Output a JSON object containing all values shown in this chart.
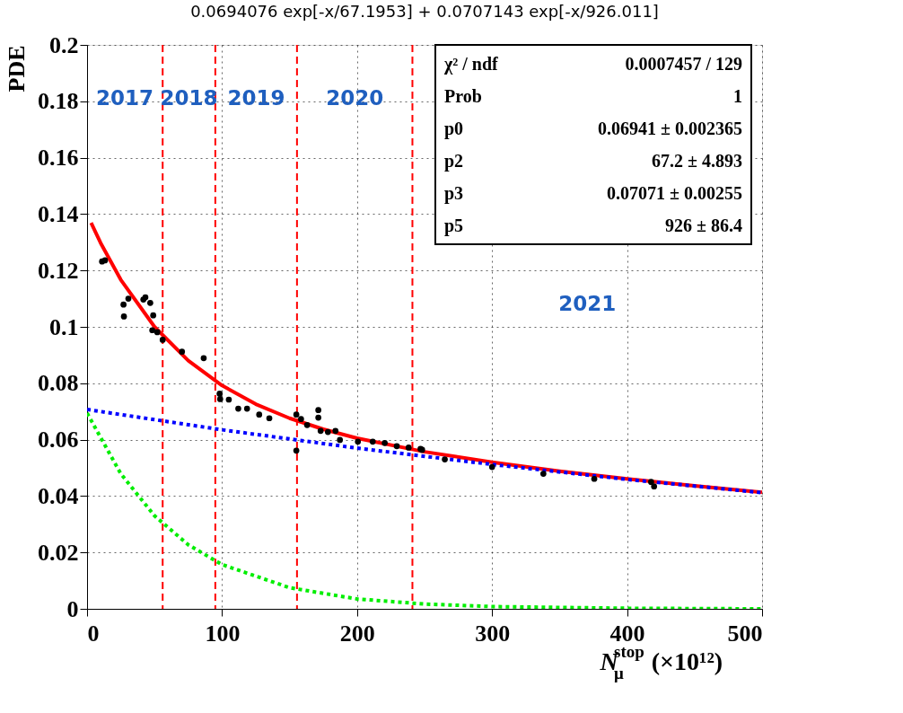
{
  "chart_data": {
    "type": "scatter",
    "title": "0.0694076 exp[-x/67.1953] + 0.0707143 exp[-x/926.011]",
    "xlabel": "N$^{stop}$$_{μ}$ (×10¹²)",
    "ylabel": "PDE",
    "xlim": [
      0,
      500
    ],
    "xticks": [
      0,
      100,
      200,
      300,
      400,
      500
    ],
    "ylim": [
      0,
      0.2
    ],
    "yticks": [
      0,
      0.02,
      0.04,
      0.06,
      0.08,
      0.1,
      0.12,
      0.14,
      0.16,
      0.18,
      0.2
    ],
    "grid": true,
    "series": [
      {
        "marker": "circle",
        "color": "#000000",
        "x": [
          11.1,
          13.3,
          27,
          27.3,
          30.6,
          41.7,
          43.2,
          46.8,
          48.3,
          49,
          52,
          56,
          70.3,
          86.4,
          98.2,
          98.6,
          105,
          112,
          118.5,
          127.5,
          135,
          155,
          155,
          158.5,
          163,
          171.3,
          171.3,
          173,
          178.4,
          184,
          187.3,
          200.6,
          211.6,
          220.5,
          229.4,
          238.2,
          247,
          248.2,
          265,
          300,
          338,
          375.7,
          417.8,
          420
        ],
        "values": [
          0.1232,
          0.1236,
          0.1079,
          0.1037,
          0.11,
          0.1097,
          0.1105,
          0.1085,
          0.0988,
          0.1041,
          0.0981,
          0.0954,
          0.0912,
          0.0889,
          0.0763,
          0.0744,
          0.0742,
          0.071,
          0.071,
          0.0689,
          0.0676,
          0.0689,
          0.0561,
          0.0673,
          0.0652,
          0.0705,
          0.0678,
          0.0631,
          0.0627,
          0.0631,
          0.0599,
          0.0593,
          0.0593,
          0.0588,
          0.0577,
          0.0572,
          0.0567,
          0.0564,
          0.053,
          0.0503,
          0.0479,
          0.0461,
          0.045,
          0.0434
        ]
      },
      {
        "type": "line",
        "marker": "none",
        "color": "#ff0000",
        "line_style": "solid",
        "x": [
          3,
          10,
          25,
          50,
          75,
          100,
          125,
          150,
          175,
          200,
          250,
          300,
          350,
          400,
          450,
          500
        ],
        "values": [
          0.1369,
          0.1298,
          0.1167,
          0.1,
          0.088,
          0.0792,
          0.0726,
          0.0676,
          0.0637,
          0.0605,
          0.0557,
          0.052,
          0.0488,
          0.0461,
          0.0436,
          0.0413
        ]
      },
      {
        "type": "line",
        "marker": "none",
        "color": "#0000ff",
        "line_style": "dotted",
        "x": [
          0,
          100,
          200,
          300,
          400,
          500
        ],
        "values": [
          0.0707,
          0.0635,
          0.057,
          0.0512,
          0.0459,
          0.0412
        ]
      },
      {
        "type": "line",
        "marker": "none",
        "color": "#00ee00",
        "line_style": "dotted",
        "x": [
          0,
          25,
          50,
          75,
          100,
          150,
          200,
          250,
          300,
          400,
          500
        ],
        "values": [
          0.0694,
          0.0479,
          0.033,
          0.0227,
          0.0157,
          0.0075,
          0.0035,
          0.0017,
          0.0008,
          0.0002,
          0
        ]
      }
    ],
    "ref_lines": [
      {
        "axis": "x",
        "value": 56,
        "color": "#ff0000",
        "line_style": "dashed"
      },
      {
        "axis": "x",
        "value": 95,
        "color": "#ff0000",
        "line_style": "dashed"
      },
      {
        "axis": "x",
        "value": 155.5,
        "color": "#ff0000",
        "line_style": "dashed"
      },
      {
        "axis": "x",
        "value": 241,
        "color": "#ff0000",
        "line_style": "dashed"
      }
    ],
    "annotations": [
      "2017",
      "2018",
      "2019",
      "2020",
      "2021",
      "χ² / ndf",
      "0.0007457 / 129",
      "Prob",
      "1",
      "p0",
      "0.06941  ± 0.002365",
      "p2",
      "67.2  ± 4.893",
      "p3",
      "0.07071  ± 0.00255",
      "p5",
      "926  ±  86.4"
    ]
  }
}
